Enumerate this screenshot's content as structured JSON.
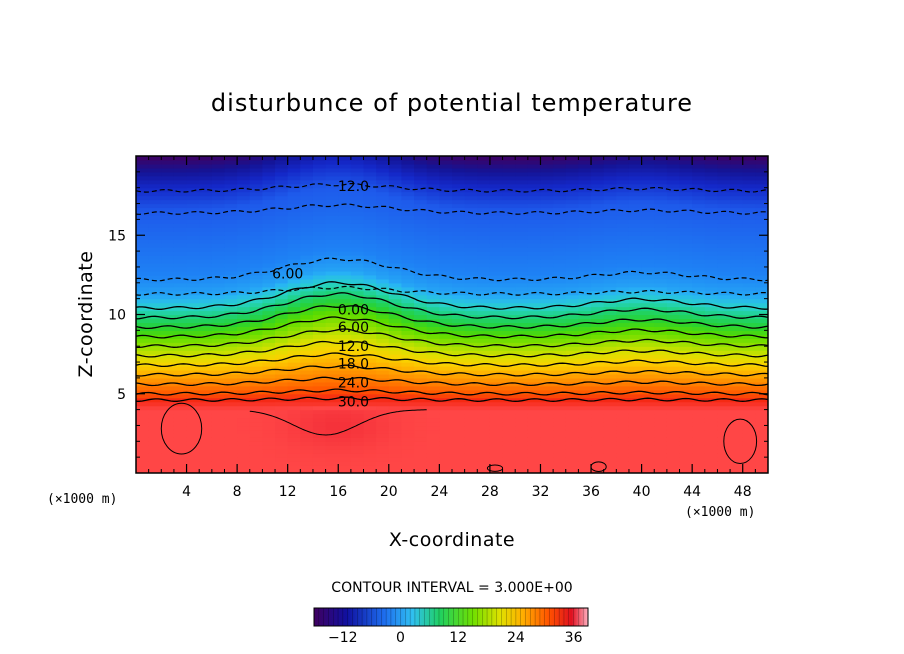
{
  "chart_data": {
    "type": "heatmap",
    "title": "disturbunce of potential temperature",
    "xlabel": "X-coordinate",
    "ylabel": "Z-coordinate",
    "x_unit": "(×1000 m)",
    "x_unit_right": "(×1000 m)",
    "xlim": [
      0,
      50
    ],
    "ylim": [
      0,
      20
    ],
    "x_ticks": [
      4,
      8,
      12,
      16,
      20,
      24,
      28,
      32,
      36,
      40,
      44,
      48
    ],
    "y_ticks": [
      5,
      10,
      15
    ],
    "contour_interval_text": "CONTOUR INTERVAL = 3.000E+00",
    "contour_interval": 3,
    "colorbar": {
      "min": -18,
      "max": 39,
      "ticks": [
        -12,
        0,
        12,
        24,
        36
      ],
      "tick_labels": [
        "−12",
        "0",
        "12",
        "24",
        "36"
      ]
    },
    "contour_labels": [
      {
        "text": "12.0",
        "x": 17.2,
        "y": 18.1
      },
      {
        "text": "6.00",
        "x": 12.0,
        "y": 12.6
      },
      {
        "text": "0.00",
        "x": 17.2,
        "y": 10.3
      },
      {
        "text": "6.00",
        "x": 17.2,
        "y": 9.2
      },
      {
        "text": "12.0",
        "x": 17.2,
        "y": 8.0
      },
      {
        "text": "18.0",
        "x": 17.2,
        "y": 6.9
      },
      {
        "text": "24.0",
        "x": 17.2,
        "y": 5.7
      },
      {
        "text": "30.0",
        "x": 17.2,
        "y": 4.5
      }
    ],
    "value_levels": [
      {
        "z": 0.0,
        "v": 33
      },
      {
        "z": 4.0,
        "v": 33
      },
      {
        "z": 4.6,
        "v": 30
      },
      {
        "z": 5.0,
        "v": 27
      },
      {
        "z": 5.6,
        "v": 24
      },
      {
        "z": 6.2,
        "v": 21
      },
      {
        "z": 6.8,
        "v": 18
      },
      {
        "z": 7.4,
        "v": 15
      },
      {
        "z": 8.0,
        "v": 12
      },
      {
        "z": 8.6,
        "v": 9
      },
      {
        "z": 9.2,
        "v": 6
      },
      {
        "z": 9.8,
        "v": 3
      },
      {
        "z": 10.4,
        "v": 0
      },
      {
        "z": 11.2,
        "v": -4
      },
      {
        "z": 12.5,
        "v": -6
      },
      {
        "z": 16.5,
        "v": -9
      },
      {
        "z": 18.0,
        "v": -12
      },
      {
        "z": 20.0,
        "v": -18
      }
    ]
  }
}
